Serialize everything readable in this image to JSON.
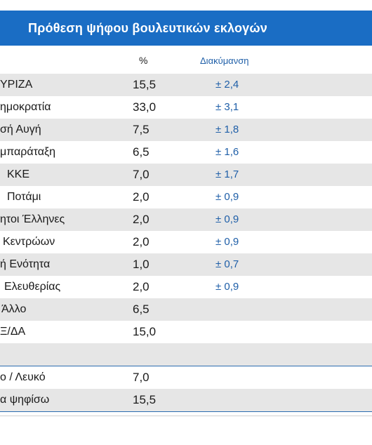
{
  "title": "Πρόθεση ψήφου βουλευτικών εκλογών",
  "columns": {
    "pct": "%",
    "margin": "Διακύμανση"
  },
  "rows": [
    {
      "party": "ΥΡΙΖΑ",
      "pct": "15,5",
      "margin": "± 2,4"
    },
    {
      "party": "ημοκρατία",
      "pct": "33,0",
      "margin": "± 3,1"
    },
    {
      "party": "σή Αυγή",
      "pct": "7,5",
      "margin": "± 1,8"
    },
    {
      "party": "μπαράταξη",
      "pct": "6,5",
      "margin": "± 1,6"
    },
    {
      "party": "ΚΚΕ",
      "pct": "7,0",
      "margin": "± 1,7"
    },
    {
      "party": "Ποτάμι",
      "pct": "2,0",
      "margin": "± 0,9"
    },
    {
      "party": "ητοι Έλληνες",
      "pct": "2,0",
      "margin": "± 0,9"
    },
    {
      "party": "Κεντρώων",
      "pct": "2,0",
      "margin": "± 0,9"
    },
    {
      "party": "ή Ενότητα",
      "pct": "1,0",
      "margin": "± 0,7"
    },
    {
      "party": "Ελευθερίας",
      "pct": "2,0",
      "margin": "± 0,9"
    },
    {
      "party": "Άλλο",
      "pct": "6,5",
      "margin": ""
    },
    {
      "party": "Ξ/ΔΑ",
      "pct": "15,0",
      "margin": ""
    },
    {
      "party": "",
      "pct": "",
      "margin": ""
    },
    {
      "party": "ο / Λευκό",
      "pct": "7,0",
      "margin": ""
    },
    {
      "party": "α ψηφίσω",
      "pct": "15,5",
      "margin": ""
    }
  ],
  "colors": {
    "title_bg": "#1a6dc4",
    "title_text": "#ffffff",
    "margin_text": "#1f5fa8",
    "stripe": "#e6e6e6",
    "separator": "#2b6cb0"
  }
}
